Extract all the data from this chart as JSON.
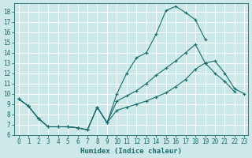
{
  "xlabel": "Humidex (Indice chaleur)",
  "xlim_min": -0.5,
  "xlim_max": 23.4,
  "ylim_min": 6.0,
  "ylim_max": 18.8,
  "yticks": [
    6,
    7,
    8,
    9,
    10,
    11,
    12,
    13,
    14,
    15,
    16,
    17,
    18
  ],
  "xticks": [
    0,
    1,
    2,
    3,
    4,
    5,
    6,
    7,
    8,
    9,
    10,
    11,
    12,
    13,
    14,
    15,
    16,
    17,
    18,
    19,
    20,
    21,
    22,
    23
  ],
  "bg_color": "#cce8e8",
  "grid_color": "#ffffff",
  "line_color": "#1a6b6b",
  "line1_x": [
    0,
    1,
    2,
    3,
    4,
    5,
    6,
    7,
    8,
    9,
    10,
    11,
    12,
    13,
    14,
    15,
    16,
    17,
    18,
    19
  ],
  "line1_y": [
    9.5,
    8.8,
    7.6,
    6.8,
    6.8,
    6.8,
    6.7,
    6.5,
    8.7,
    7.2,
    10.0,
    12.0,
    13.5,
    14.0,
    15.8,
    18.1,
    18.5,
    17.9,
    17.2,
    15.3
  ],
  "line2_x": [
    0,
    1,
    2,
    3,
    4,
    5,
    6,
    7,
    8,
    9,
    10,
    11,
    12,
    13,
    14,
    15,
    16,
    17,
    18,
    19,
    20,
    21,
    22
  ],
  "line2_y": [
    9.5,
    8.8,
    7.6,
    6.8,
    6.8,
    6.8,
    6.7,
    6.5,
    8.7,
    7.2,
    9.3,
    9.8,
    10.3,
    11.0,
    11.8,
    12.5,
    13.2,
    14.0,
    14.8,
    13.0,
    12.0,
    11.2,
    10.2
  ],
  "line3_x": [
    0,
    1,
    2,
    3,
    4,
    5,
    6,
    7,
    8,
    9,
    10,
    11,
    12,
    13,
    14,
    15,
    16,
    17,
    18,
    19,
    20,
    21,
    22,
    23
  ],
  "line3_y": [
    9.5,
    8.8,
    7.6,
    6.8,
    6.8,
    6.8,
    6.7,
    6.5,
    8.7,
    7.2,
    8.4,
    8.7,
    9.0,
    9.3,
    9.7,
    10.1,
    10.7,
    11.4,
    12.4,
    13.0,
    13.2,
    12.0,
    10.5,
    10.0
  ],
  "tick_fontsize": 5.5,
  "xlabel_fontsize": 6.5,
  "linewidth": 0.8,
  "markersize": 3.5,
  "markeredgewidth": 0.8
}
